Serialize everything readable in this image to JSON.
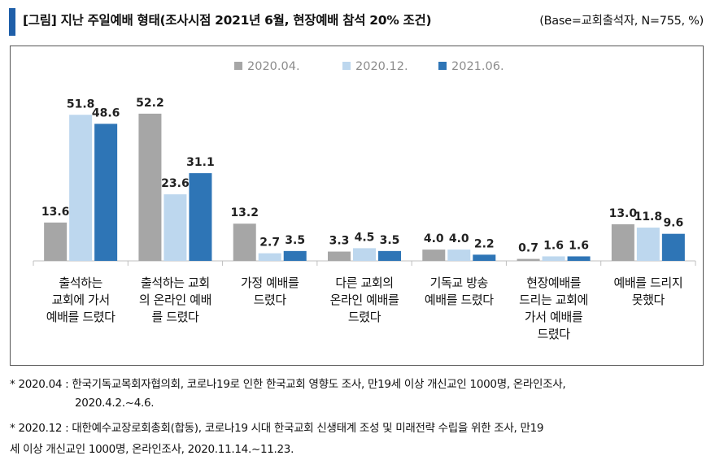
{
  "header": {
    "title": "[그림] 지난 주일예배 형태(조사시점 2021년 6월, 현장예배 참석 20% 조건)",
    "base": "(Base=교회출석자, N=755, %)",
    "accent_color": "#1f5fa9"
  },
  "chart_data": {
    "type": "bar",
    "title": "",
    "xlabel": "",
    "ylabel": "",
    "ylim": [
      0,
      60
    ],
    "grid": false,
    "legend_position": "top-center",
    "categories": [
      [
        "출석하는",
        "교회에 가서",
        "예배를 드렸다"
      ],
      [
        "출석하는 교회",
        "의 온라인 예배",
        "를 드렸다"
      ],
      [
        "가정 예배를",
        "드렸다"
      ],
      [
        "다른 교회의",
        "온라인 예배를",
        "드렸다"
      ],
      [
        "기독교 방송",
        "예배를 드렸다"
      ],
      [
        "현장예배를",
        "드리는 교회에",
        "가서 예배를",
        "드렸다"
      ],
      [
        "예배를 드리지",
        "못했다"
      ]
    ],
    "series": [
      {
        "name": "2020.04.",
        "color": "#a6a6a6",
        "values": [
          13.6,
          52.2,
          13.2,
          3.3,
          4.0,
          0.7,
          13.0
        ]
      },
      {
        "name": "2020.12.",
        "color": "#bdd7ee",
        "values": [
          51.8,
          23.6,
          2.7,
          4.5,
          4.0,
          1.6,
          11.8
        ]
      },
      {
        "name": "2021.06.",
        "color": "#2e75b6",
        "values": [
          48.6,
          31.1,
          3.5,
          3.5,
          2.2,
          1.6,
          9.6
        ]
      }
    ]
  },
  "notes": [
    "* 2020.04 : 한국기독교목회자협의회, 코로나19로 인한 한국교회 영향도 조사, 만19세 이상 개신교인 1000명, 온라인조사,",
    "2020.4.2.~4.6.",
    "* 2020.12 : 대한예수교장로회총회(합동), 코로나19 시대 한국교회 신생태계 조성 및 미래전략 수립을 위한 조사, 만19",
    "세 이상 개신교인 1000명, 온라인조사, 2020.11.14.~11.23."
  ]
}
